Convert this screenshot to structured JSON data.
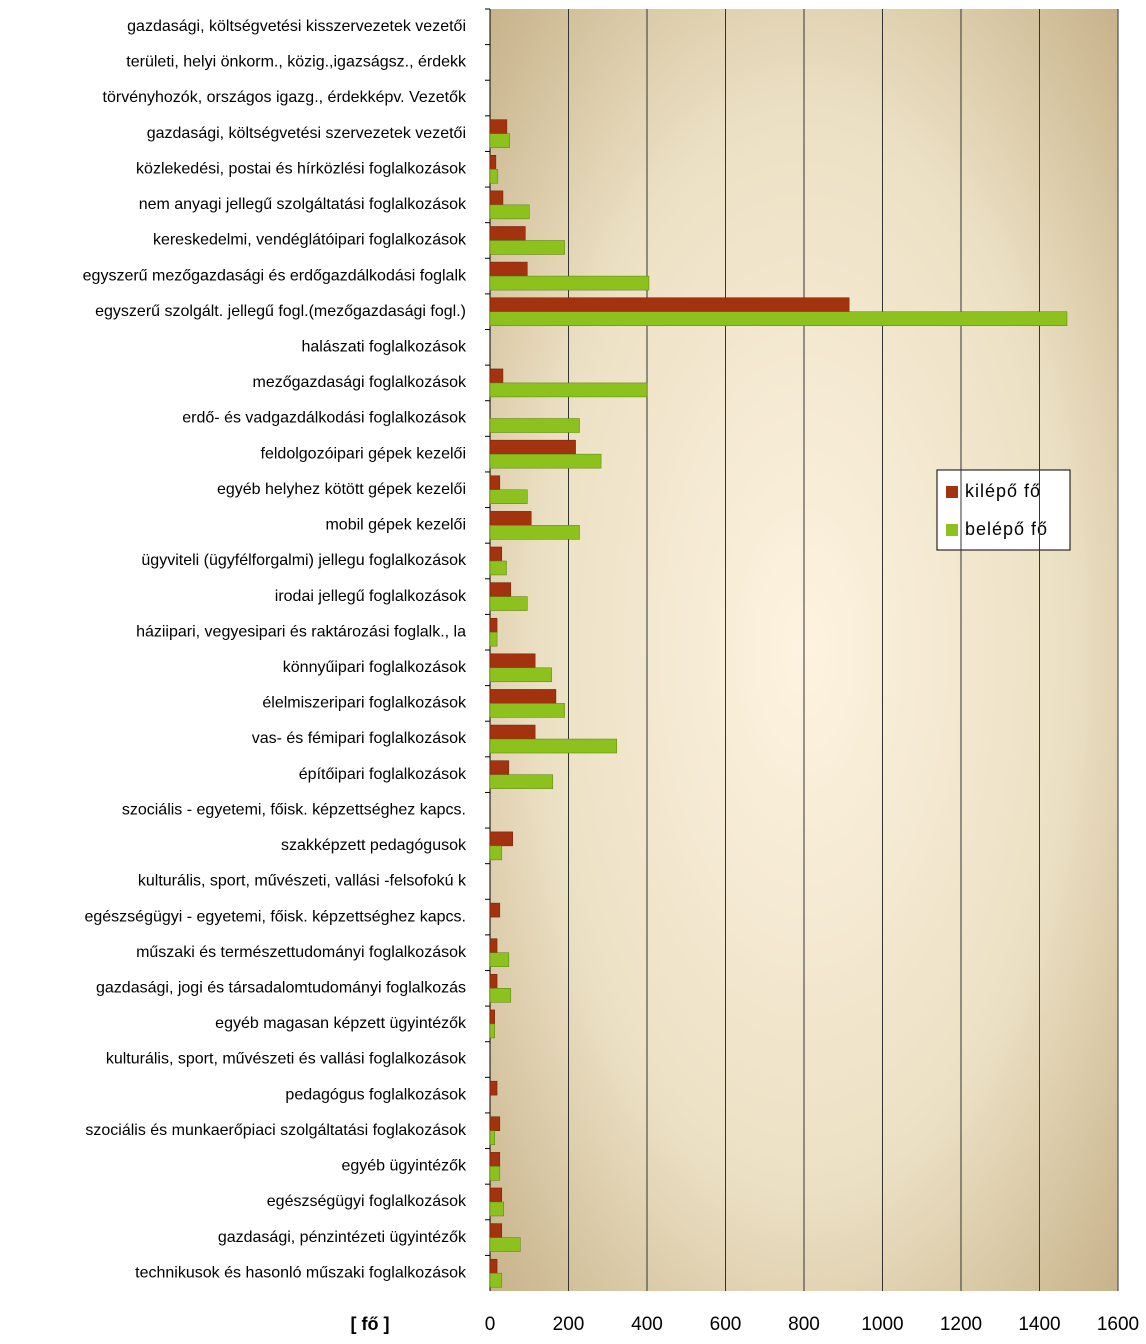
{
  "chart_data": {
    "type": "bar",
    "orientation": "horizontal",
    "categories": [
      "gazdasági, költségvetési kisszervezetek vezetői",
      "területi, helyi önkorm., közig.,igazságsz., érdekk",
      "törvényhozók, országos igazg., érdekképv. Vezetők",
      "gazdasági, költségvetési szervezetek vezetői",
      "közlekedési, postai és hírközlési foglalkozások",
      "nem anyagi jellegű szolgáltatási foglalkozások",
      "kereskedelmi, vendéglátóipari foglalkozások",
      "egyszerű mezőgazdasági és erdőgazdálkodási foglalk",
      "egyszerű szolgált. jellegű fogl.(mezőgazdasági fogl.)",
      "halászati foglalkozások",
      "mezőgazdasági foglalkozások",
      "erdő- és vadgazdálkodási foglalkozások",
      "feldolgozóipari gépek kezelői",
      "egyéb helyhez kötött gépek kezelői",
      "mobil gépek kezelői",
      "ügyviteli (ügyfélforgalmi) jellegu foglalkozások",
      "irodai jellegű foglalkozások",
      "háziipari, vegyesipari és raktározási foglalk., la",
      "könnyűipari foglalkozások",
      "élelmiszeripari foglalkozások",
      "vas- és fémipari foglalkozások",
      "építőipari foglalkozások",
      "szociális - egyetemi, főisk. képzettséghez kapcs.",
      "szakképzett pedagógusok",
      "kulturális, sport, művészeti, vallási -felsofokú k",
      "egészségügyi - egyetemi, főisk. képzettséghez kapcs.",
      "műszaki és természettudományi foglalkozások",
      "gazdasági, jogi és társadalomtudományi foglalkozás",
      "egyéb magasan képzett ügyintézők",
      "kulturális, sport, művészeti és vallási foglalkozások",
      "pedagógus foglalkozások",
      "szociális és munkaerőpiaci szolgáltatási foglakozások",
      "egyéb ügyintézők",
      "egészségügyi foglalkozások",
      "gazdasági, pénzintézeti ügyintézők",
      "technikusok és hasonló műszaki foglalkozások"
    ],
    "series": [
      {
        "name": "kilépő fő",
        "color": "#a3320e",
        "values": [
          0,
          0,
          0,
          43,
          15,
          33,
          90,
          95,
          915,
          0,
          33,
          0,
          218,
          25,
          105,
          30,
          53,
          18,
          115,
          168,
          115,
          48,
          0,
          58,
          0,
          25,
          18,
          18,
          12,
          0,
          18,
          25,
          25,
          30,
          30,
          18
        ]
      },
      {
        "name": "belépő fő",
        "color": "#8dc21e",
        "values": [
          0,
          0,
          0,
          50,
          20,
          100,
          190,
          405,
          1470,
          0,
          400,
          228,
          283,
          95,
          228,
          42,
          95,
          18,
          157,
          190,
          323,
          160,
          0,
          30,
          0,
          0,
          48,
          53,
          12,
          0,
          0,
          12,
          25,
          35,
          77,
          30
        ]
      }
    ],
    "xlabel": "[ fő ]",
    "xlim": [
      0,
      1600
    ],
    "xticks": [
      0,
      200,
      400,
      600,
      800,
      1000,
      1200,
      1400,
      1600
    ],
    "grid": true,
    "legend": "right"
  }
}
